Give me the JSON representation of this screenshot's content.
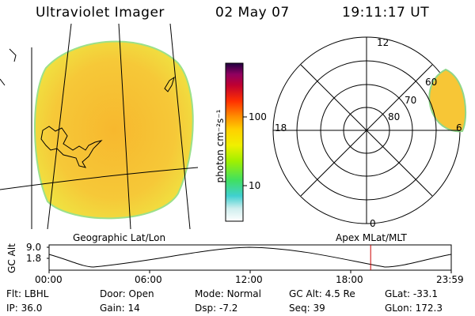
{
  "header": {
    "instrument": "Ultraviolet Imager",
    "date": "02 May 07",
    "time": "19:11:17 UT"
  },
  "colorbar": {
    "unit_label": "photon cm⁻²s⁻¹",
    "ticks": [
      "100",
      "10"
    ],
    "colors": [
      "#ffffff",
      "#cfeeee",
      "#40d0d0",
      "#40e060",
      "#a0f000",
      "#f0f000",
      "#ffd000",
      "#ff9000",
      "#ff3000",
      "#c00030",
      "#900060",
      "#200040"
    ]
  },
  "polar_plot": {
    "lat_labels": [
      "60",
      "70",
      "80"
    ],
    "mlt_labels": {
      "top": "12",
      "left": "18",
      "right": "6",
      "bottom": "0"
    }
  },
  "map_labels": {
    "left": "Geographic Lat/Lon",
    "right": "Apex MLat/MLT"
  },
  "altitude_plot": {
    "ylabel": "GC Alt",
    "y_ticks": [
      "9.0",
      "1.8"
    ],
    "x_ticks": [
      "00:00",
      "06:00",
      "12:00",
      "18:00",
      "23:59"
    ],
    "current_marker_hour": 19.19
  },
  "info": {
    "row1": [
      {
        "label": "Flt:",
        "value": "LBHL"
      },
      {
        "label": "Door:",
        "value": "Open"
      },
      {
        "label": "Mode:",
        "value": "Normal"
      },
      {
        "label": "GC Alt:",
        "value": "4.5 Re"
      },
      {
        "label": "GLat:",
        "value": "-33.1"
      }
    ],
    "row2": [
      {
        "label": "IP:",
        "value": "36.0"
      },
      {
        "label": "Gain:",
        "value": "14"
      },
      {
        "label": "Dsp:",
        "value": "-7.2"
      },
      {
        "label": "Seq:",
        "value": "39"
      },
      {
        "label": "GLon:",
        "value": "172.3"
      }
    ]
  },
  "colors": {
    "image_fill": "#f7c636",
    "image_edge": "#e8e230",
    "rim": "#8fd68a",
    "marker": "#cc0000"
  }
}
